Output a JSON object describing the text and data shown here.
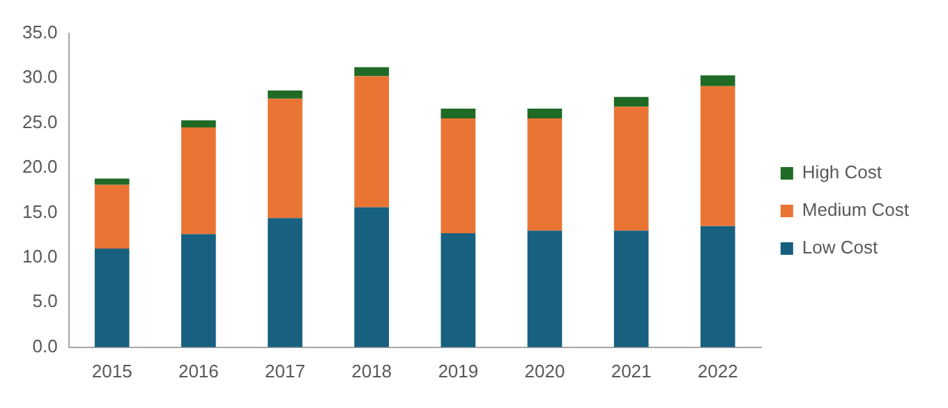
{
  "chart_data": {
    "type": "bar",
    "stacked": true,
    "categories": [
      "2015",
      "2016",
      "2017",
      "2018",
      "2019",
      "2020",
      "2021",
      "2022"
    ],
    "series": [
      {
        "name": "Low Cost",
        "color": "#17607f",
        "values": [
          11.0,
          12.6,
          14.4,
          15.6,
          12.7,
          13.0,
          13.0,
          13.5
        ]
      },
      {
        "name": "Medium Cost",
        "color": "#ea7434",
        "values": [
          7.1,
          11.9,
          13.3,
          14.6,
          12.8,
          12.5,
          13.8,
          15.6
        ]
      },
      {
        "name": "High Cost",
        "color": "#1f6b25",
        "values": [
          0.7,
          0.8,
          0.9,
          1.0,
          1.1,
          1.1,
          1.1,
          1.2
        ]
      }
    ],
    "ylim": [
      0,
      35
    ],
    "yticks": [
      {
        "value": 0,
        "label": "0.0"
      },
      {
        "value": 5,
        "label": "5.0"
      },
      {
        "value": 10,
        "label": "10.0"
      },
      {
        "value": 15,
        "label": "15.0"
      },
      {
        "value": 20,
        "label": "20.0"
      },
      {
        "value": 25,
        "label": "25.0"
      },
      {
        "value": 30,
        "label": "30.0"
      },
      {
        "value": 35,
        "label": "35.0"
      }
    ],
    "grid": false,
    "legend": "right"
  }
}
